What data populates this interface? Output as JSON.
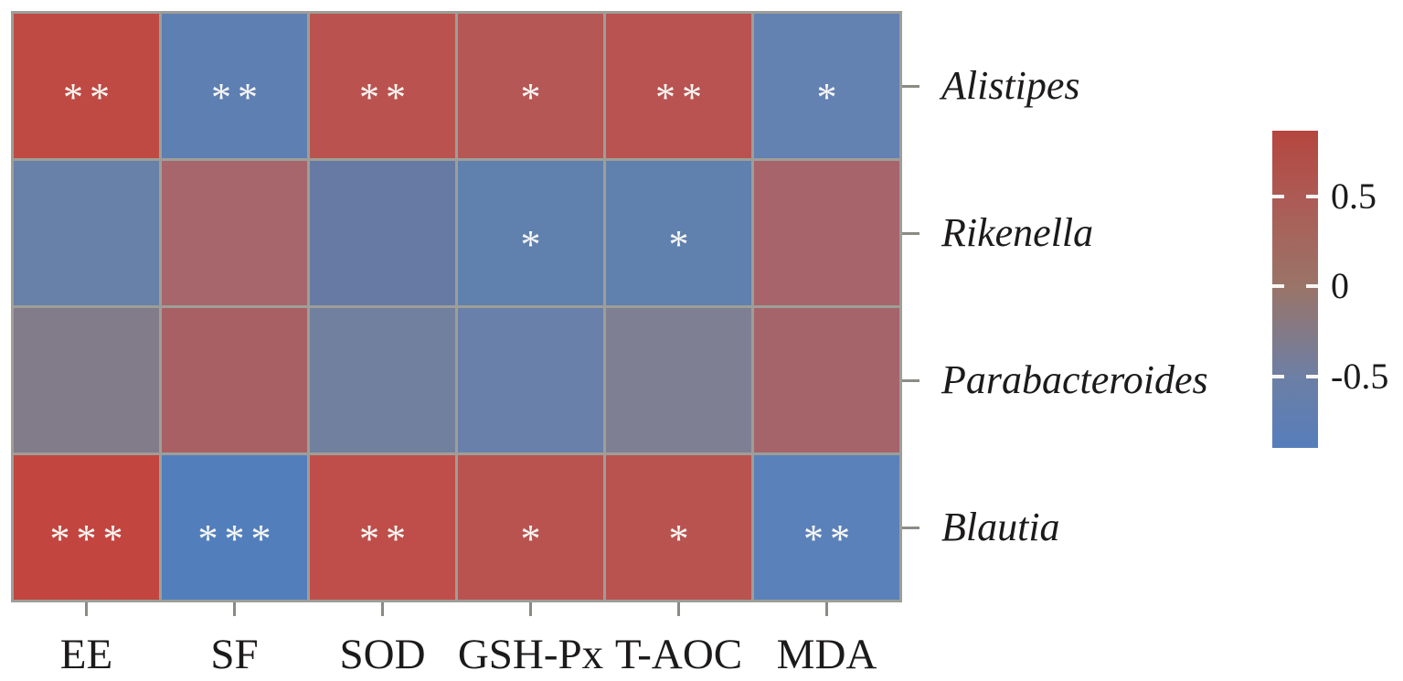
{
  "chart_data": {
    "type": "heatmap",
    "title": "",
    "columns": [
      "EE",
      "SF",
      "SOD",
      "GSH-Px",
      "T-AOC",
      "MDA"
    ],
    "rows": [
      "Alistipes",
      "Rikenella",
      "Parabacteroides",
      "Blautia"
    ],
    "row_label_style": "italic",
    "significance": [
      [
        "**",
        "**",
        "**",
        "*",
        "**",
        "*"
      ],
      [
        "",
        "",
        "",
        "*",
        "*",
        ""
      ],
      [
        "",
        "",
        "",
        "",
        "",
        ""
      ],
      [
        "***",
        "***",
        "**",
        "*",
        "*",
        "**"
      ]
    ],
    "values_estimated": [
      [
        0.8,
        -0.6,
        0.7,
        0.6,
        0.65,
        -0.5
      ],
      [
        -0.4,
        0.45,
        -0.4,
        -0.5,
        -0.5,
        0.45
      ],
      [
        -0.05,
        0.5,
        -0.3,
        -0.4,
        -0.15,
        0.45
      ],
      [
        0.85,
        -0.8,
        0.75,
        0.65,
        0.65,
        -0.65
      ]
    ],
    "cell_colors": [
      [
        "#bf4a43",
        "#5d7fb2",
        "#ba5350",
        "#b55755",
        "#b85351",
        "#6381b1"
      ],
      [
        "#6781a8",
        "#a6666c",
        "#667aa4",
        "#6080ae",
        "#6080ae",
        "#a7646b"
      ],
      [
        "#817b8a",
        "#a96065",
        "#71809e",
        "#6980ab",
        "#7f7f93",
        "#a5646a"
      ],
      [
        "#c2453f",
        "#527fbc",
        "#bf4e4a",
        "#b95350",
        "#b95350",
        "#5a81b9"
      ]
    ],
    "colorbar": {
      "tick_labels": [
        "0.5",
        "0",
        "-0.5"
      ],
      "tick_values": [
        0.5,
        0,
        -0.5
      ],
      "tick_percents": [
        20.7,
        49.0,
        77.5
      ],
      "range_estimated": [
        -0.9,
        0.87
      ],
      "gradient_stops": [
        {
          "pct": 0,
          "color": "#b5463f"
        },
        {
          "pct": 21,
          "color": "#ad5a54"
        },
        {
          "pct": 49,
          "color": "#9a7468"
        },
        {
          "pct": 78,
          "color": "#6c7fa5"
        },
        {
          "pct": 100,
          "color": "#567ebb"
        }
      ],
      "position": "right"
    },
    "grid_on": true,
    "grid_line_color": "#9e9e98",
    "tick_color": "#8b8b85",
    "star_color": "#f8f7f4",
    "text_color": "#1c1a1a"
  }
}
